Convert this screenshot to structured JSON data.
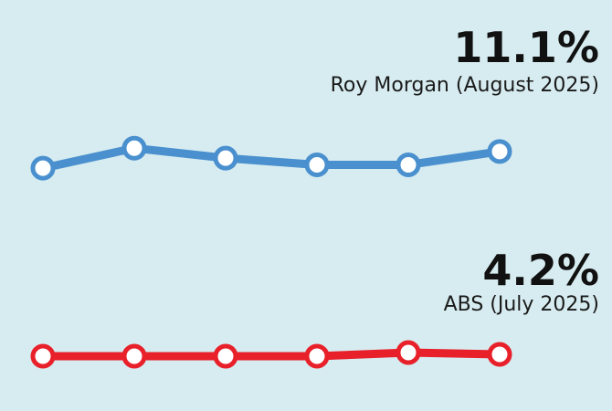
{
  "chart_data": [
    {
      "type": "line",
      "categories": [
        null,
        null,
        null,
        null,
        null,
        null
      ],
      "ylim": [
        10,
        12
      ],
      "series": [
        {
          "name": "Roy Morgan (August 2025)",
          "color": "#4a90cf",
          "values": [
            10.6,
            11.2,
            10.9,
            10.7,
            10.7,
            11.1
          ],
          "value_labels": [
            null,
            null,
            null,
            null,
            null,
            "11.1%"
          ]
        }
      ]
    },
    {
      "type": "line",
      "categories": [
        null,
        null,
        null,
        null,
        null,
        null
      ],
      "ylim": [
        3,
        5
      ],
      "series": [
        {
          "name": "ABS (July 2025)",
          "color": "#e8202a",
          "values": [
            4.1,
            4.1,
            4.1,
            4.1,
            4.3,
            4.2
          ],
          "value_labels": [
            null,
            null,
            null,
            null,
            null,
            "4.2%"
          ]
        }
      ]
    }
  ]
}
